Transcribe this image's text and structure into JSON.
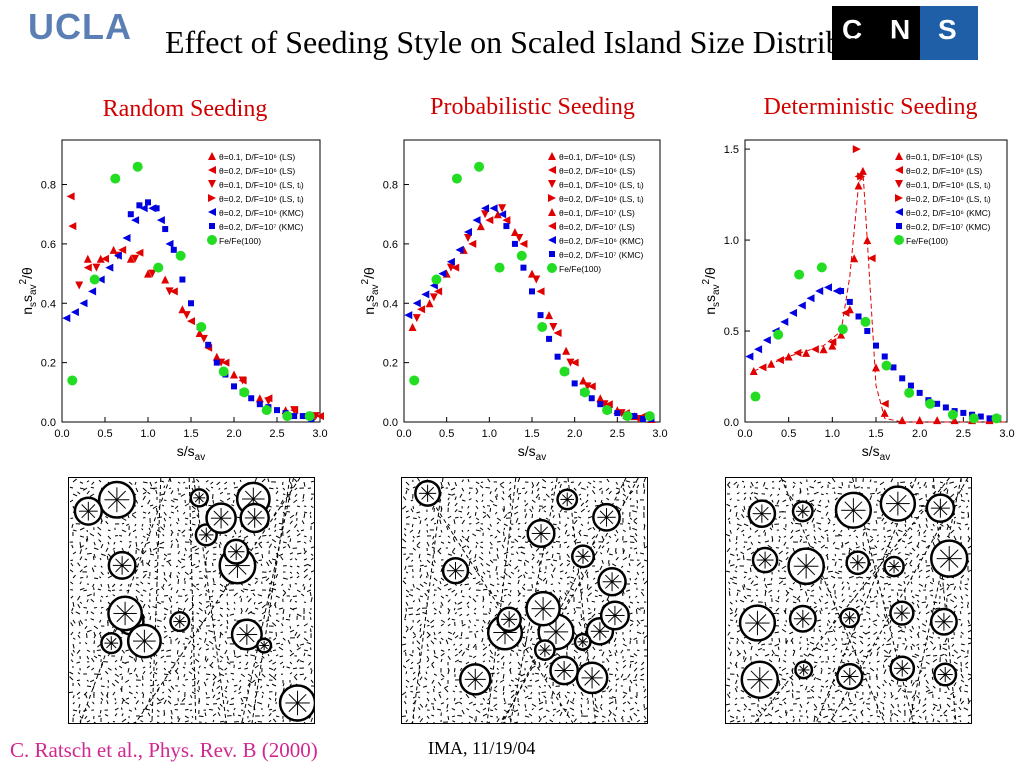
{
  "header": {
    "logo_text": "UCLA",
    "logo_right_text": "C N S I",
    "title": "Effect of Seeding Style on Scaled Island Size Distribution"
  },
  "panels": [
    {
      "title": "Random Seeding",
      "image_label": "Random seeding island morphology"
    },
    {
      "title": "Probabilistic Seeding",
      "image_label": "Probabilistic seeding island morphology"
    },
    {
      "title": "Deterministic Seeding",
      "image_label": "Deterministic seeding island morphology"
    }
  ],
  "footer": {
    "citation": "C. Ratsch et al., Phys. Rev. B (2000)",
    "date": "IMA, 11/19/04"
  },
  "colors": {
    "title_red": "#d00000",
    "logo_blue": "#5b7fb5",
    "citation_pink": "#d0288f",
    "red_series": "#e00000",
    "blue_series": "#0000e0",
    "green_series": "#22dd22"
  },
  "chart_data": [
    {
      "type": "scatter",
      "title": "Random Seeding",
      "xlabel": "s/s_av",
      "ylabel": "n_s s_av^2/θ",
      "xlim": [
        0,
        3.0
      ],
      "ylim": [
        0,
        0.95
      ],
      "xticks": [
        "0.0",
        "0.5",
        "1.0",
        "1.5",
        "2.0",
        "2.5",
        "3.0"
      ],
      "yticks": [
        "0.0",
        "0.2",
        "0.4",
        "0.6",
        "0.8"
      ],
      "legend": [
        "θ=0.1, D/F=10^6 (LS)",
        "θ=0.2, D/F=10^6 (LS)",
        "θ=0.1, D/F=10^6 (LS, t_i)",
        "θ=0.2, D/F=10^6 (LS, t_i)",
        "θ=0.2, D/F=10^6 (KMC)",
        "θ=0.2, D/F=10^7 (KMC)",
        "Fe/Fe(100)"
      ],
      "series": [
        {
          "name": "θ=0.1, D/F=10^6 (LS)",
          "marker": "tri-up",
          "color": "red",
          "x": [
            0.3,
            0.45,
            0.6,
            0.8,
            1.0,
            1.2,
            1.4,
            1.6,
            1.8,
            2.0,
            2.3,
            2.6,
            2.9
          ],
          "y": [
            0.55,
            0.55,
            0.58,
            0.55,
            0.5,
            0.48,
            0.38,
            0.3,
            0.22,
            0.16,
            0.08,
            0.04,
            0.02
          ]
        },
        {
          "name": "θ=0.2, D/F=10^6 (LS)",
          "marker": "tri-left",
          "color": "red",
          "x": [
            0.1,
            0.12,
            0.3,
            0.5,
            0.7,
            0.9,
            1.1,
            1.3,
            1.5,
            1.7,
            1.9,
            2.1,
            2.4,
            2.7,
            3.0
          ],
          "y": [
            0.76,
            0.66,
            0.52,
            0.55,
            0.58,
            0.57,
            0.52,
            0.44,
            0.34,
            0.25,
            0.2,
            0.14,
            0.08,
            0.04,
            0.02
          ]
        },
        {
          "name": "θ=0.1, D/F=10^6 (LS, t_i)",
          "marker": "tri-down",
          "color": "red",
          "x": [
            0.2,
            0.4,
            0.65,
            0.85,
            1.05,
            1.25,
            1.45,
            1.65,
            1.85,
            2.1,
            2.4,
            2.7,
            2.95
          ],
          "y": [
            0.46,
            0.52,
            0.56,
            0.55,
            0.5,
            0.44,
            0.36,
            0.28,
            0.2,
            0.14,
            0.07,
            0.04,
            0.02
          ]
        },
        {
          "name": "θ=0.2, D/F=10^6 (KMC)",
          "marker": "tri-left",
          "color": "blue",
          "x": [
            0.05,
            0.15,
            0.25,
            0.35,
            0.45,
            0.55,
            0.65,
            0.75,
            0.85,
            0.95,
            1.05,
            1.15,
            1.25
          ],
          "y": [
            0.35,
            0.37,
            0.4,
            0.44,
            0.48,
            0.52,
            0.56,
            0.62,
            0.68,
            0.72,
            0.72,
            0.68,
            0.6
          ]
        },
        {
          "name": "θ=0.2, D/F=10^7 (KMC)",
          "marker": "square",
          "color": "blue",
          "x": [
            0.8,
            0.9,
            1.0,
            1.1,
            1.2,
            1.3,
            1.4,
            1.5,
            1.6,
            1.7,
            1.8,
            1.9,
            2.0,
            2.1,
            2.2,
            2.3,
            2.4,
            2.5,
            2.6,
            2.7,
            2.8,
            2.9
          ],
          "y": [
            0.7,
            0.73,
            0.74,
            0.72,
            0.65,
            0.58,
            0.48,
            0.4,
            0.32,
            0.26,
            0.2,
            0.16,
            0.12,
            0.1,
            0.08,
            0.06,
            0.05,
            0.04,
            0.03,
            0.02,
            0.02,
            0.01
          ]
        },
        {
          "name": "Fe/Fe(100)",
          "marker": "circle",
          "color": "green",
          "x": [
            0.12,
            0.38,
            0.62,
            0.88,
            1.12,
            1.38,
            1.62,
            1.88,
            2.12,
            2.38,
            2.62,
            2.88
          ],
          "y": [
            0.14,
            0.48,
            0.82,
            0.86,
            0.52,
            0.56,
            0.32,
            0.17,
            0.1,
            0.04,
            0.02,
            0.02
          ]
        }
      ]
    },
    {
      "type": "scatter",
      "title": "Probabilistic Seeding",
      "xlabel": "s/s_av",
      "ylabel": "n_s s_av^2/θ",
      "xlim": [
        0,
        3.0
      ],
      "ylim": [
        0,
        0.95
      ],
      "xticks": [
        "0.0",
        "0.5",
        "1.0",
        "1.5",
        "2.0",
        "2.5",
        "3.0"
      ],
      "yticks": [
        "0.0",
        "0.2",
        "0.4",
        "0.6",
        "0.8"
      ],
      "legend": [
        "θ=0.1, D/F=10^6 (LS)",
        "θ=0.2, D/F=10^6 (LS)",
        "θ=0.1, D/F=10^6 (LS, t_i)",
        "θ=0.2, D/F=10^6 (LS, t_i)",
        "θ=0.1, D/F=10^7 (LS)",
        "θ=0.2, D/F=10^7 (LS)",
        "θ=0.2, D/F=10^6 (KMC)",
        "θ=0.2, D/F=10^7 (KMC)",
        "Fe/Fe(100)"
      ],
      "series": [
        {
          "name": "θ=0.1, D/F=10^6 (LS)",
          "marker": "tri-up",
          "color": "red",
          "x": [
            0.1,
            0.3,
            0.5,
            0.7,
            0.9,
            1.1,
            1.3,
            1.5,
            1.7,
            1.9,
            2.1,
            2.3,
            2.5,
            2.7,
            2.9
          ],
          "y": [
            0.32,
            0.4,
            0.5,
            0.58,
            0.66,
            0.7,
            0.64,
            0.5,
            0.36,
            0.24,
            0.14,
            0.08,
            0.04,
            0.02,
            0.01
          ]
        },
        {
          "name": "θ=0.2, D/F=10^6 (LS)",
          "marker": "tri-left",
          "color": "red",
          "x": [
            0.2,
            0.4,
            0.6,
            0.8,
            1.0,
            1.2,
            1.4,
            1.6,
            1.8,
            2.0,
            2.2,
            2.4,
            2.6,
            2.8
          ],
          "y": [
            0.38,
            0.44,
            0.52,
            0.6,
            0.68,
            0.68,
            0.6,
            0.44,
            0.3,
            0.2,
            0.12,
            0.06,
            0.03,
            0.02
          ]
        },
        {
          "name": "θ=0.1, D/F=10^6 (LS, t_i)",
          "marker": "tri-down",
          "color": "red",
          "x": [
            0.15,
            0.35,
            0.55,
            0.75,
            0.95,
            1.15,
            1.35,
            1.55,
            1.75,
            1.95,
            2.15,
            2.35,
            2.55,
            2.75
          ],
          "y": [
            0.35,
            0.42,
            0.52,
            0.62,
            0.7,
            0.72,
            0.62,
            0.48,
            0.32,
            0.2,
            0.12,
            0.06,
            0.03,
            0.01
          ]
        },
        {
          "name": "θ=0.2, D/F=10^6 (KMC)",
          "marker": "tri-left",
          "color": "blue",
          "x": [
            0.05,
            0.15,
            0.25,
            0.35,
            0.45,
            0.55,
            0.65,
            0.75,
            0.85,
            0.95,
            1.05,
            1.15
          ],
          "y": [
            0.36,
            0.4,
            0.43,
            0.46,
            0.5,
            0.54,
            0.58,
            0.64,
            0.68,
            0.72,
            0.72,
            0.7
          ]
        },
        {
          "name": "θ=0.2, D/F=10^7 (KMC)",
          "marker": "square",
          "color": "blue",
          "x": [
            1.2,
            1.3,
            1.4,
            1.5,
            1.6,
            1.7,
            1.8,
            1.9,
            2.0,
            2.1,
            2.2,
            2.3,
            2.4,
            2.5,
            2.6,
            2.7,
            2.8,
            2.9
          ],
          "y": [
            0.66,
            0.6,
            0.52,
            0.44,
            0.36,
            0.28,
            0.22,
            0.17,
            0.13,
            0.1,
            0.08,
            0.06,
            0.04,
            0.03,
            0.02,
            0.02,
            0.01,
            0.01
          ]
        },
        {
          "name": "Fe/Fe(100)",
          "marker": "circle",
          "color": "green",
          "x": [
            0.12,
            0.38,
            0.62,
            0.88,
            1.12,
            1.38,
            1.62,
            1.88,
            2.12,
            2.38,
            2.62,
            2.88
          ],
          "y": [
            0.14,
            0.48,
            0.82,
            0.86,
            0.52,
            0.56,
            0.32,
            0.17,
            0.1,
            0.04,
            0.02,
            0.02
          ]
        }
      ]
    },
    {
      "type": "scatter",
      "title": "Deterministic Seeding",
      "xlabel": "s/s_av",
      "ylabel": "n_s s_av^2/θ",
      "xlim": [
        0,
        3.0
      ],
      "ylim": [
        0,
        1.55
      ],
      "xticks": [
        "0.0",
        "0.5",
        "1.0",
        "1.5",
        "2.0",
        "2.5",
        "3.0"
      ],
      "yticks": [
        "0.0",
        "0.5",
        "1.0",
        "1.5"
      ],
      "legend": [
        "θ=0.1, D/F=10^6 (LS)",
        "θ=0.2, D/F=10^6 (LS)",
        "θ=0.1, D/F=10^6 (LS, t_i)",
        "θ=0.2, D/F=10^6 (LS, t_i)",
        "θ=0.2, D/F=10^6 (KMC)",
        "θ=0.2, D/F=10^7 (KMC)",
        "Fe/Fe(100)"
      ],
      "series": [
        {
          "name": "θ=0.1, D/F=10^6 (LS)",
          "marker": "tri-up",
          "color": "red",
          "x": [
            0.1,
            0.3,
            0.5,
            0.7,
            0.9,
            1.0,
            1.1,
            1.2,
            1.25,
            1.3,
            1.35,
            1.4,
            1.5,
            1.6,
            1.8,
            2.0,
            2.2,
            2.4,
            2.6,
            2.8
          ],
          "y": [
            0.28,
            0.32,
            0.36,
            0.38,
            0.4,
            0.42,
            0.48,
            0.62,
            0.9,
            1.3,
            1.38,
            1.0,
            0.3,
            0.05,
            0.01,
            0.01,
            0.01,
            0.01,
            0.01,
            0.01
          ]
        },
        {
          "name": "θ=0.2, D/F=10^6 (LS)",
          "marker": "tri-left",
          "color": "red",
          "x": [
            0.2,
            0.4,
            0.6,
            0.8,
            1.0,
            1.15,
            1.3,
            1.45,
            1.6
          ],
          "y": [
            0.3,
            0.34,
            0.38,
            0.4,
            0.44,
            0.6,
            1.35,
            0.9,
            0.1
          ]
        },
        {
          "name": "θ=0.2, D/F=10^6 (LS, t_i)",
          "marker": "tri-right",
          "color": "red",
          "x": [
            1.28,
            1.33
          ],
          "y": [
            1.5,
            1.35
          ]
        },
        {
          "name": "θ=0.2, D/F=10^6 (KMC)",
          "marker": "tri-left",
          "color": "blue",
          "x": [
            0.05,
            0.15,
            0.25,
            0.35,
            0.45,
            0.55,
            0.65,
            0.75,
            0.85,
            0.95,
            1.05
          ],
          "y": [
            0.36,
            0.4,
            0.45,
            0.5,
            0.55,
            0.6,
            0.64,
            0.68,
            0.72,
            0.74,
            0.72
          ]
        },
        {
          "name": "θ=0.2, D/F=10^7 (KMC)",
          "marker": "square",
          "color": "blue",
          "x": [
            1.1,
            1.2,
            1.3,
            1.4,
            1.5,
            1.6,
            1.7,
            1.8,
            1.9,
            2.0,
            2.1,
            2.2,
            2.3,
            2.4,
            2.5,
            2.6,
            2.7,
            2.8,
            2.9
          ],
          "y": [
            0.72,
            0.66,
            0.58,
            0.5,
            0.42,
            0.36,
            0.3,
            0.24,
            0.2,
            0.16,
            0.12,
            0.1,
            0.08,
            0.06,
            0.05,
            0.04,
            0.03,
            0.02,
            0.02
          ]
        },
        {
          "name": "Fe/Fe(100)",
          "marker": "circle",
          "color": "green",
          "x": [
            0.12,
            0.38,
            0.62,
            0.88,
            1.12,
            1.38,
            1.62,
            1.88,
            2.12,
            2.38,
            2.62,
            2.88
          ],
          "y": [
            0.14,
            0.48,
            0.81,
            0.85,
            0.51,
            0.55,
            0.31,
            0.16,
            0.1,
            0.04,
            0.02,
            0.02
          ]
        }
      ],
      "fit_line": {
        "x": [
          0.1,
          0.5,
          0.9,
          1.1,
          1.2,
          1.3,
          1.35,
          1.4,
          1.5,
          1.6,
          1.8,
          2.5,
          3.0
        ],
        "y": [
          0.28,
          0.36,
          0.42,
          0.5,
          0.8,
          1.3,
          1.38,
          1.0,
          0.2,
          0.02,
          0.0,
          0.0,
          0.0
        ]
      }
    }
  ]
}
